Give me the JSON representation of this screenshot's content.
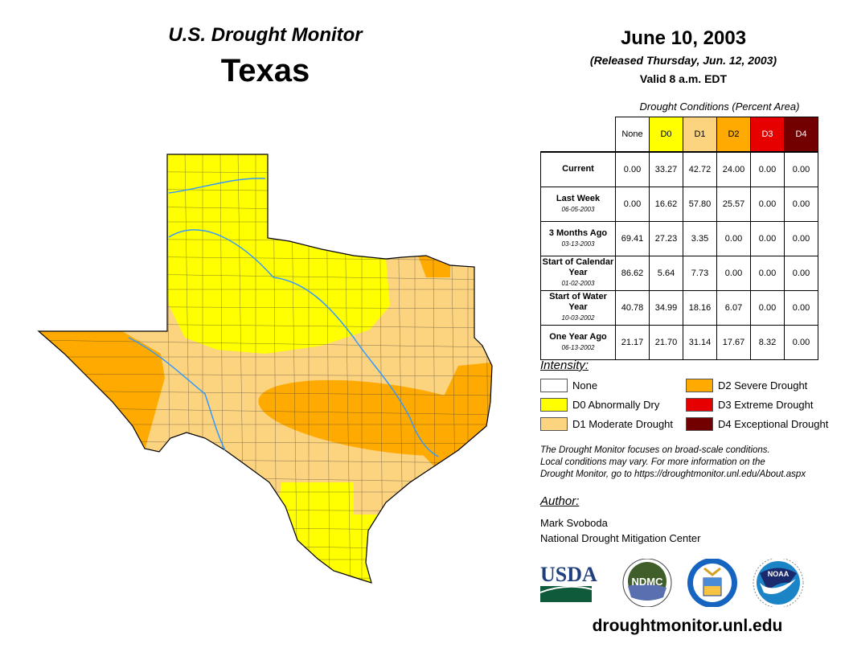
{
  "header": {
    "title": "U.S. Drought Monitor",
    "region": "Texas",
    "date": "June 10, 2003",
    "released": "(Released Thursday, Jun. 12, 2003)",
    "valid": "Valid 8 a.m. EDT"
  },
  "table": {
    "caption": "Drought Conditions (Percent Area)",
    "columns": [
      {
        "label": "None",
        "color": "#ffffff",
        "text": "#000"
      },
      {
        "label": "D0",
        "color": "#ffff00",
        "text": "#000"
      },
      {
        "label": "D1",
        "color": "#fcd37f",
        "text": "#000"
      },
      {
        "label": "D2",
        "color": "#ffaa00",
        "text": "#000"
      },
      {
        "label": "D3",
        "color": "#e60000",
        "text": "#fff"
      },
      {
        "label": "D4",
        "color": "#730000",
        "text": "#fff"
      }
    ],
    "rows": [
      {
        "label": "Current",
        "sub": "",
        "values": [
          "0.00",
          "33.27",
          "42.72",
          "24.00",
          "0.00",
          "0.00"
        ]
      },
      {
        "label": "Last Week",
        "sub": "06-05-2003",
        "values": [
          "0.00",
          "16.62",
          "57.80",
          "25.57",
          "0.00",
          "0.00"
        ]
      },
      {
        "label": "3 Months Ago",
        "sub": "03-13-2003",
        "values": [
          "69.41",
          "27.23",
          "3.35",
          "0.00",
          "0.00",
          "0.00"
        ]
      },
      {
        "label": "Start of Calendar Year",
        "sub": "01-02-2003",
        "values": [
          "86.62",
          "5.64",
          "7.73",
          "0.00",
          "0.00",
          "0.00"
        ]
      },
      {
        "label": "Start of Water Year",
        "sub": "10-03-2002",
        "values": [
          "40.78",
          "34.99",
          "18.16",
          "6.07",
          "0.00",
          "0.00"
        ]
      },
      {
        "label": "One Year Ago",
        "sub": "06-13-2002",
        "values": [
          "21.17",
          "21.70",
          "31.14",
          "17.67",
          "8.32",
          "0.00"
        ]
      }
    ]
  },
  "legend": {
    "title": "Intensity:",
    "items": [
      {
        "label": "None",
        "color": "#ffffff"
      },
      {
        "label": "D0 Abnormally Dry",
        "color": "#ffff00"
      },
      {
        "label": "D1 Moderate Drought",
        "color": "#fcd37f"
      },
      {
        "label": "D2 Severe Drought",
        "color": "#ffaa00"
      },
      {
        "label": "D3 Extreme Drought",
        "color": "#e60000"
      },
      {
        "label": "D4 Exceptional Drought",
        "color": "#730000"
      }
    ]
  },
  "note": [
    "The Drought Monitor focuses on broad-scale conditions.",
    "Local conditions may vary. For more information on the",
    "Drought Monitor, go to https://droughtmonitor.unl.edu/About.aspx"
  ],
  "author": {
    "title": "Author:",
    "name": "Mark Svoboda",
    "org": "National Drought Mitigation Center"
  },
  "logos": {
    "usda": "USDA",
    "ndmc": "NDMC",
    "noaa": "NOAA"
  },
  "url": "droughtmonitor.unl.edu"
}
